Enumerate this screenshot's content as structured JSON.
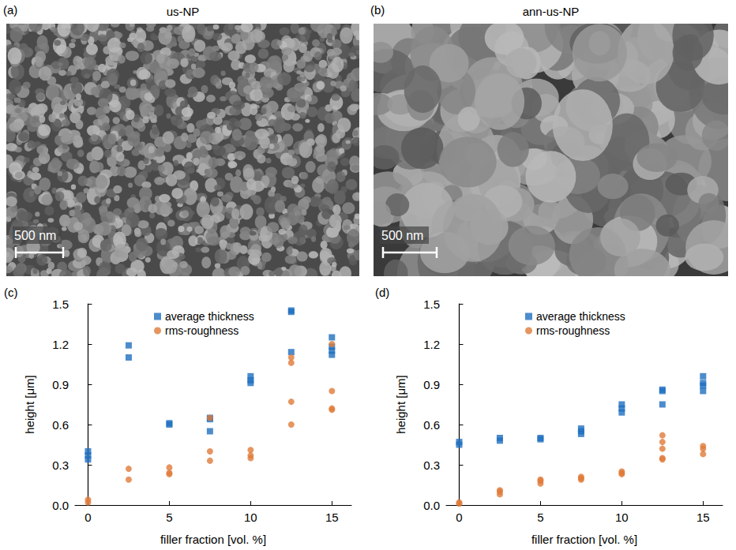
{
  "images": [
    {
      "panel": "(a)",
      "title": "us-NP",
      "scale_bar": "500 nm"
    },
    {
      "panel": "(b)",
      "title": "ann-us-NP",
      "scale_bar": "500 nm"
    }
  ],
  "chart_data": [
    {
      "type": "scatter",
      "panel": "(c)",
      "x_label": "filler fraction [vol. %]",
      "y_label": "height [μm]",
      "xlim": [
        -0.8,
        16.2
      ],
      "xticks": [
        0,
        5,
        10,
        15
      ],
      "ylim": [
        0,
        1.5
      ],
      "yticks": [
        {
          "value": 0,
          "label": "0.0"
        },
        0.3,
        0.6,
        0.9,
        1.2,
        1.5
      ],
      "grid": false,
      "legend": "top",
      "series": [
        {
          "name": "average thickness",
          "color": "#1f6fbf",
          "marker": "square",
          "x": [
            0,
            0,
            0,
            2.5,
            2.5,
            5,
            5,
            7.5,
            7.5,
            7.5,
            10,
            10,
            10,
            12.5,
            12.5,
            12.5,
            15,
            15,
            15,
            15
          ],
          "values": [
            0.34,
            0.37,
            0.4,
            1.19,
            1.1,
            0.6,
            0.61,
            0.65,
            0.55,
            0.64,
            0.96,
            0.93,
            0.91,
            1.45,
            1.44,
            1.14,
            1.25,
            1.18,
            1.15,
            1.12
          ]
        },
        {
          "name": "rms-roughness",
          "color": "#e07b39",
          "marker": "circle",
          "x": [
            0,
            0,
            2.5,
            2.5,
            5,
            5,
            5,
            7.5,
            7.5,
            7.5,
            10,
            10,
            10,
            12.5,
            12.5,
            12.5,
            12.5,
            15,
            15,
            15,
            15
          ],
          "values": [
            0.02,
            0.04,
            0.27,
            0.19,
            0.28,
            0.24,
            0.23,
            0.4,
            0.33,
            0.65,
            0.41,
            0.37,
            0.35,
            1.1,
            1.06,
            0.77,
            0.6,
            1.2,
            0.85,
            0.72,
            0.71
          ]
        }
      ]
    },
    {
      "type": "scatter",
      "panel": "(d)",
      "x_label": "filler fraction [vol. %]",
      "y_label": "height [μm]",
      "xlim": [
        -0.8,
        16.2
      ],
      "xticks": [
        0,
        5,
        10,
        15
      ],
      "ylim": [
        0,
        1.5
      ],
      "yticks": [
        {
          "value": 0,
          "label": "0.0"
        },
        0.3,
        0.6,
        0.9,
        1.2,
        1.5
      ],
      "grid": false,
      "legend": "top",
      "series": [
        {
          "name": "average thickness",
          "color": "#1f6fbf",
          "marker": "square",
          "x": [
            0,
            0,
            2.5,
            2.5,
            5,
            5,
            7.5,
            7.5,
            7.5,
            10,
            10,
            10,
            12.5,
            12.5,
            12.5,
            15,
            15,
            15,
            15
          ],
          "values": [
            0.45,
            0.47,
            0.48,
            0.5,
            0.49,
            0.5,
            0.53,
            0.55,
            0.57,
            0.69,
            0.72,
            0.75,
            0.86,
            0.85,
            0.75,
            0.96,
            0.91,
            0.89,
            0.85
          ]
        },
        {
          "name": "rms-roughness",
          "color": "#e07b39",
          "marker": "circle",
          "x": [
            0,
            0,
            2.5,
            2.5,
            2.5,
            5,
            5,
            5,
            7.5,
            7.5,
            7.5,
            10,
            10,
            10,
            12.5,
            12.5,
            12.5,
            12.5,
            12.5,
            15,
            15,
            15
          ],
          "values": [
            0.01,
            0.02,
            0.08,
            0.1,
            0.11,
            0.16,
            0.18,
            0.19,
            0.19,
            0.2,
            0.21,
            0.23,
            0.24,
            0.25,
            0.52,
            0.47,
            0.42,
            0.35,
            0.34,
            0.44,
            0.42,
            0.38
          ]
        }
      ]
    }
  ]
}
